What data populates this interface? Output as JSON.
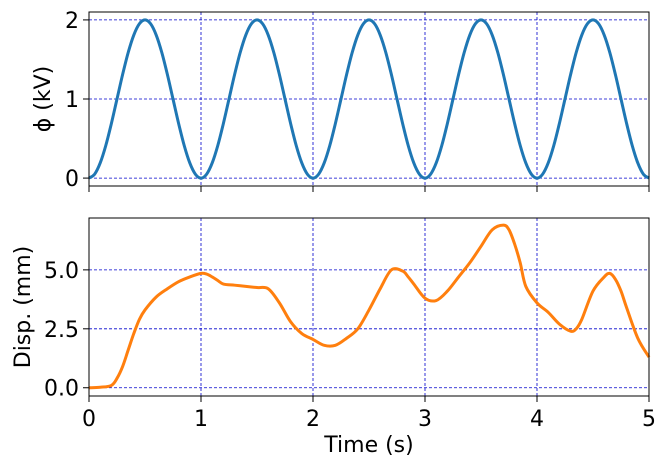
{
  "chart_data": [
    {
      "type": "line",
      "title": "",
      "xlabel": "",
      "ylabel": "ϕ (kV)",
      "xlim": [
        0,
        5
      ],
      "ylim": [
        -0.1,
        2.1
      ],
      "xticks": [
        0,
        1,
        2,
        3,
        4,
        5
      ],
      "yticks": [
        0,
        1,
        2
      ],
      "ytick_labels": [
        "0",
        "1",
        "2"
      ],
      "grid": true,
      "grid_color": "#0000cc",
      "series": [
        {
          "color": "#1f77b4",
          "x": [
            0,
            0.05,
            0.1,
            0.15,
            0.2,
            0.25,
            0.3,
            0.35,
            0.4,
            0.45,
            0.5,
            0.55,
            0.6,
            0.65,
            0.7,
            0.75,
            0.8,
            0.85,
            0.9,
            0.95,
            1.0,
            1.05,
            1.1,
            1.15,
            1.2,
            1.25,
            1.3,
            1.35,
            1.4,
            1.45,
            1.5,
            1.55,
            1.6,
            1.65,
            1.7,
            1.75,
            1.8,
            1.85,
            1.9,
            1.95,
            2.0,
            2.05,
            2.1,
            2.15,
            2.2,
            2.25,
            2.3,
            2.35,
            2.4,
            2.45,
            2.5,
            2.55,
            2.6,
            2.65,
            2.7,
            2.75,
            2.8,
            2.85,
            2.9,
            2.95,
            3.0,
            3.05,
            3.1,
            3.15,
            3.2,
            3.25,
            3.3,
            3.35,
            3.4,
            3.45,
            3.5,
            3.55,
            3.6,
            3.65,
            3.7,
            3.75,
            3.8,
            3.85,
            3.9,
            3.95,
            4.0,
            4.05,
            4.1,
            4.15,
            4.2,
            4.25,
            4.3,
            4.35,
            4.4,
            4.45,
            4.5,
            4.55,
            4.6,
            4.65,
            4.7,
            4.75,
            4.8,
            4.85,
            4.9,
            4.95,
            5.0
          ],
          "y": [
            0,
            0.049,
            0.191,
            0.412,
            0.691,
            1.0,
            1.309,
            1.588,
            1.809,
            1.951,
            2.0,
            1.951,
            1.809,
            1.588,
            1.309,
            1.0,
            0.691,
            0.412,
            0.191,
            0.049,
            0,
            0.049,
            0.191,
            0.412,
            0.691,
            1.0,
            1.309,
            1.588,
            1.809,
            1.951,
            2.0,
            1.951,
            1.809,
            1.588,
            1.309,
            1.0,
            0.691,
            0.412,
            0.191,
            0.049,
            0,
            0.049,
            0.191,
            0.412,
            0.691,
            1.0,
            1.309,
            1.588,
            1.809,
            1.951,
            2.0,
            1.951,
            1.809,
            1.588,
            1.309,
            1.0,
            0.691,
            0.412,
            0.191,
            0.049,
            0,
            0.049,
            0.191,
            0.412,
            0.691,
            1.0,
            1.309,
            1.588,
            1.809,
            1.951,
            2.0,
            1.951,
            1.809,
            1.588,
            1.309,
            1.0,
            0.691,
            0.412,
            0.191,
            0.049,
            0,
            0.049,
            0.191,
            0.412,
            0.691,
            1.0,
            1.309,
            1.588,
            1.809,
            1.951,
            2.0,
            1.951,
            1.809,
            1.588,
            1.309,
            1.0,
            0.691,
            0.412,
            0.191,
            0.049,
            0
          ]
        }
      ]
    },
    {
      "type": "line",
      "title": "",
      "xlabel": "Time (s)",
      "ylabel": "Disp. (mm)",
      "xlim": [
        0,
        5
      ],
      "ylim": [
        -0.35,
        7.2
      ],
      "xticks": [
        0,
        1,
        2,
        3,
        4,
        5
      ],
      "xtick_labels": [
        "0",
        "1",
        "2",
        "3",
        "4",
        "5"
      ],
      "yticks": [
        0,
        2.5,
        5
      ],
      "ytick_labels": [
        "0.0",
        "2.5",
        "5.0"
      ],
      "grid": true,
      "grid_color": "#0000cc",
      "series": [
        {
          "color": "#ff7f0e",
          "x": [
            0,
            0.1,
            0.2,
            0.25,
            0.3,
            0.35,
            0.4,
            0.45,
            0.5,
            0.6,
            0.7,
            0.8,
            0.9,
            1.0,
            1.05,
            1.1,
            1.15,
            1.2,
            1.3,
            1.4,
            1.5,
            1.6,
            1.7,
            1.8,
            1.9,
            2.0,
            2.1,
            2.2,
            2.3,
            2.4,
            2.5,
            2.6,
            2.7,
            2.8,
            2.85,
            2.9,
            3.0,
            3.1,
            3.2,
            3.3,
            3.4,
            3.5,
            3.6,
            3.7,
            3.75,
            3.8,
            3.85,
            3.9,
            4.0,
            4.1,
            4.2,
            4.3,
            4.35,
            4.4,
            4.5,
            4.6,
            4.65,
            4.7,
            4.75,
            4.8,
            4.9,
            5.0
          ],
          "y": [
            0,
            0.02,
            0.1,
            0.4,
            0.9,
            1.6,
            2.3,
            2.9,
            3.3,
            3.85,
            4.2,
            4.5,
            4.7,
            4.85,
            4.82,
            4.7,
            4.55,
            4.4,
            4.35,
            4.3,
            4.25,
            4.2,
            3.6,
            2.8,
            2.3,
            2.05,
            1.8,
            1.8,
            2.1,
            2.5,
            3.3,
            4.2,
            5.0,
            4.95,
            4.7,
            4.4,
            3.8,
            3.7,
            4.1,
            4.7,
            5.3,
            6.0,
            6.7,
            6.9,
            6.7,
            6.1,
            5.3,
            4.3,
            3.6,
            3.2,
            2.7,
            2.4,
            2.5,
            2.9,
            4.1,
            4.7,
            4.85,
            4.6,
            4.1,
            3.4,
            2.1,
            1.3
          ]
        }
      ]
    }
  ]
}
